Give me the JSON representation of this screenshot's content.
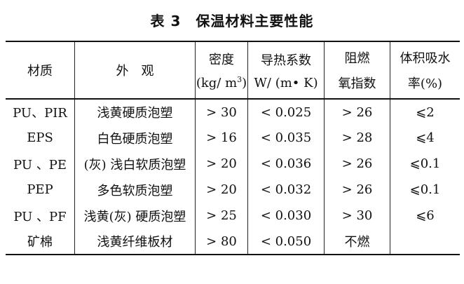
{
  "title": "表 3　保温材料主要性能",
  "headers": [
    {
      "line1": "材质",
      "line2": ""
    },
    {
      "line1": "外　观",
      "line2": ""
    },
    {
      "line1": "密度",
      "line2": "(kg/ m",
      "sup": "3",
      "tail": ")"
    },
    {
      "line1": "导热系数",
      "line2": "W/ (m• K)"
    },
    {
      "line1": "阻燃",
      "line2": "氧指数"
    },
    {
      "line1": "体积吸水",
      "line2": "率(%)"
    }
  ],
  "rows": [
    [
      "PU、PIR",
      "浅黄硬质泡塑",
      "> 30",
      "< 0.025",
      "> 26",
      "⩽2"
    ],
    [
      "EPS",
      "白色硬质泡塑",
      "> 16",
      "< 0.035",
      "> 28",
      "⩽4"
    ],
    [
      "PU 、PE",
      "(灰) 浅白软质泡塑",
      "> 20",
      "< 0.036",
      "> 26",
      "⩽0.1"
    ],
    [
      "PEP",
      "多色软质泡塑",
      "> 20",
      "< 0.032",
      "> 26",
      "⩽0.1"
    ],
    [
      "PU 、PF",
      "浅黄(灰) 硬质泡塑",
      "> 25",
      "< 0.030",
      "> 30",
      "⩽6"
    ],
    [
      "矿棉",
      "浅黄纤维板材",
      "> 80",
      "< 0.050",
      "不燃",
      ""
    ]
  ]
}
